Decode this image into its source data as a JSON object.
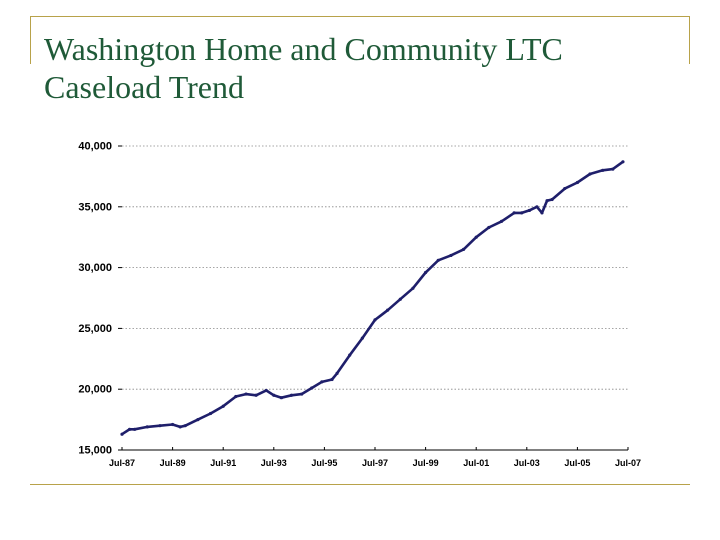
{
  "slide": {
    "title_line1": "Washington Home and Community LTC",
    "title_line2": "Caseload Trend"
  },
  "colors": {
    "accent_frame": "#b8a24a",
    "title_text": "#1f5a38",
    "series_line": "#1f1f6b",
    "gridline": "#888888"
  },
  "chart_data": {
    "type": "line",
    "title": "Washington Home and Community LTC Caseload Trend",
    "xlabel": "",
    "ylabel": "",
    "x_range": [
      1987.5,
      2007.5
    ],
    "ylim": [
      15000,
      40000
    ],
    "y_ticks": [
      40000,
      35000,
      30000,
      25000,
      20000,
      15000
    ],
    "y_tick_labels": [
      "40,000",
      "35,000",
      "30,000",
      "25,000",
      "20,000",
      "15,000"
    ],
    "x_ticks": [
      1987.5,
      1989.5,
      1991.5,
      1993.5,
      1995.5,
      1997.5,
      1999.5,
      2001.5,
      2003.5,
      2005.5,
      2007.5
    ],
    "x_tick_labels": [
      "Jul-87",
      "Jul-89",
      "Jul-91",
      "Jul-93",
      "Jul-95",
      "Jul-97",
      "Jul-99",
      "Jul-01",
      "Jul-03",
      "Jul-05",
      "Jul-07"
    ],
    "grid": "horizontal dotted",
    "legend": "none",
    "series": [
      {
        "name": "Caseload",
        "x": [
          1987.5,
          1987.8,
          1988.0,
          1988.5,
          1989.0,
          1989.5,
          1989.8,
          1990.0,
          1990.5,
          1991.0,
          1991.5,
          1992.0,
          1992.4,
          1992.8,
          1993.2,
          1993.5,
          1993.8,
          1994.2,
          1994.6,
          1995.0,
          1995.4,
          1995.8,
          1996.0,
          1996.5,
          1997.0,
          1997.5,
          1998.0,
          1998.5,
          1999.0,
          1999.5,
          2000.0,
          2000.5,
          2001.0,
          2001.5,
          2002.0,
          2002.5,
          2003.0,
          2003.3,
          2003.6,
          2003.9,
          2004.1,
          2004.3,
          2004.5,
          2005.0,
          2005.5,
          2006.0,
          2006.5,
          2006.9,
          2007.3
        ],
        "values": [
          16300,
          16700,
          16700,
          16900,
          17000,
          17100,
          16900,
          17000,
          17500,
          18000,
          18600,
          19400,
          19600,
          19500,
          19900,
          19500,
          19300,
          19500,
          19600,
          20100,
          20600,
          20800,
          21300,
          22800,
          24200,
          25700,
          26500,
          27400,
          28300,
          29600,
          30600,
          31000,
          31500,
          32500,
          33300,
          33800,
          34500,
          34500,
          34700,
          35000,
          34500,
          35500,
          35600,
          36500,
          37000,
          37700,
          38000,
          38100,
          38700
        ]
      }
    ]
  }
}
